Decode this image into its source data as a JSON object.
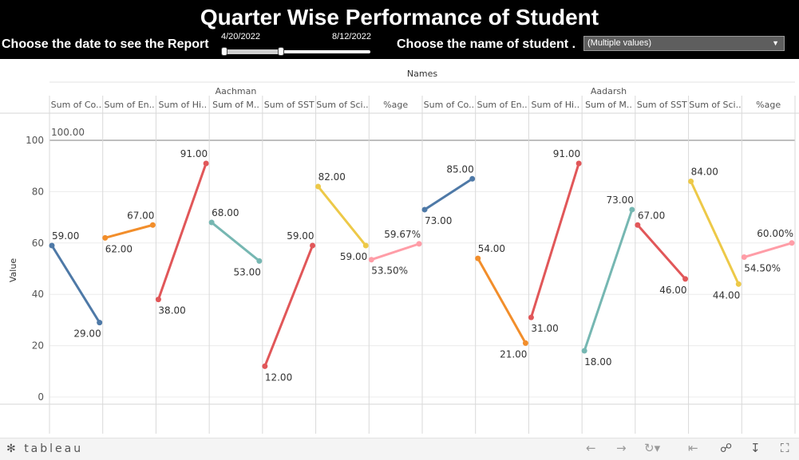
{
  "header": {
    "title": "Quarter Wise Performance of Student",
    "date_label": "Choose the date to see the Report",
    "date_start": "4/20/2022",
    "date_end": "8/12/2022",
    "student_label": "Choose the name of student .",
    "student_select_value": "(Multiple values)"
  },
  "chart_data": {
    "type": "line",
    "column_header": "Names",
    "ylabel": "Value",
    "ylim": [
      0,
      110
    ],
    "yticks": [
      0,
      20,
      40,
      60,
      80,
      100
    ],
    "reference_line": {
      "value": 100,
      "label": "100.00"
    },
    "grid": true,
    "panels": [
      {
        "name": "Aachman",
        "series": [
          {
            "name": "Sum of Co..",
            "color": "#4e79a7",
            "values": [
              59,
              29
            ],
            "labels": [
              "59.00",
              "29.00"
            ]
          },
          {
            "name": "Sum of En..",
            "color": "#f28e2b",
            "values": [
              62,
              67
            ],
            "labels": [
              "62.00",
              "67.00"
            ]
          },
          {
            "name": "Sum of Hi..",
            "color": "#e15759",
            "values": [
              38,
              91
            ],
            "labels": [
              "38.00",
              "91.00"
            ]
          },
          {
            "name": "Sum of M..",
            "color": "#76b7b2",
            "values": [
              68,
              53
            ],
            "labels": [
              "68.00",
              "53.00"
            ]
          },
          {
            "name": "Sum of SST",
            "color": "#e15759",
            "values": [
              12,
              59
            ],
            "labels": [
              "12.00",
              "59.00"
            ]
          },
          {
            "name": "Sum of Sci..",
            "color": "#edc948",
            "values": [
              82,
              59
            ],
            "labels": [
              "82.00",
              "59.00"
            ]
          },
          {
            "name": "%age",
            "color": "#ff9da7",
            "values": [
              53.5,
              59.67
            ],
            "labels": [
              "53.50%",
              "59.67%"
            ]
          }
        ]
      },
      {
        "name": "Aadarsh",
        "series": [
          {
            "name": "Sum of Co..",
            "color": "#4e79a7",
            "values": [
              73,
              85
            ],
            "labels": [
              "73.00",
              "85.00"
            ]
          },
          {
            "name": "Sum of En..",
            "color": "#f28e2b",
            "values": [
              54,
              21
            ],
            "labels": [
              "54.00",
              "21.00"
            ]
          },
          {
            "name": "Sum of Hi..",
            "color": "#e15759",
            "values": [
              31,
              91
            ],
            "labels": [
              "31.00",
              "91.00"
            ]
          },
          {
            "name": "Sum of M..",
            "color": "#76b7b2",
            "values": [
              18,
              73
            ],
            "labels": [
              "18.00",
              "73.00"
            ]
          },
          {
            "name": "Sum of SST",
            "color": "#e15759",
            "values": [
              67,
              46
            ],
            "labels": [
              "67.00",
              "46.00"
            ]
          },
          {
            "name": "Sum of Sci..",
            "color": "#edc948",
            "values": [
              84,
              44
            ],
            "labels": [
              "84.00",
              "44.00"
            ]
          },
          {
            "name": "%age",
            "color": "#ff9da7",
            "values": [
              54.5,
              60
            ],
            "labels": [
              "54.50%",
              "60.00%"
            ]
          }
        ]
      }
    ]
  },
  "footer": {
    "logo": "tableau",
    "icons": [
      "undo-icon",
      "redo-icon",
      "revert-icon",
      "reset-icon",
      "share-icon",
      "download-icon",
      "fullscreen-icon"
    ]
  }
}
